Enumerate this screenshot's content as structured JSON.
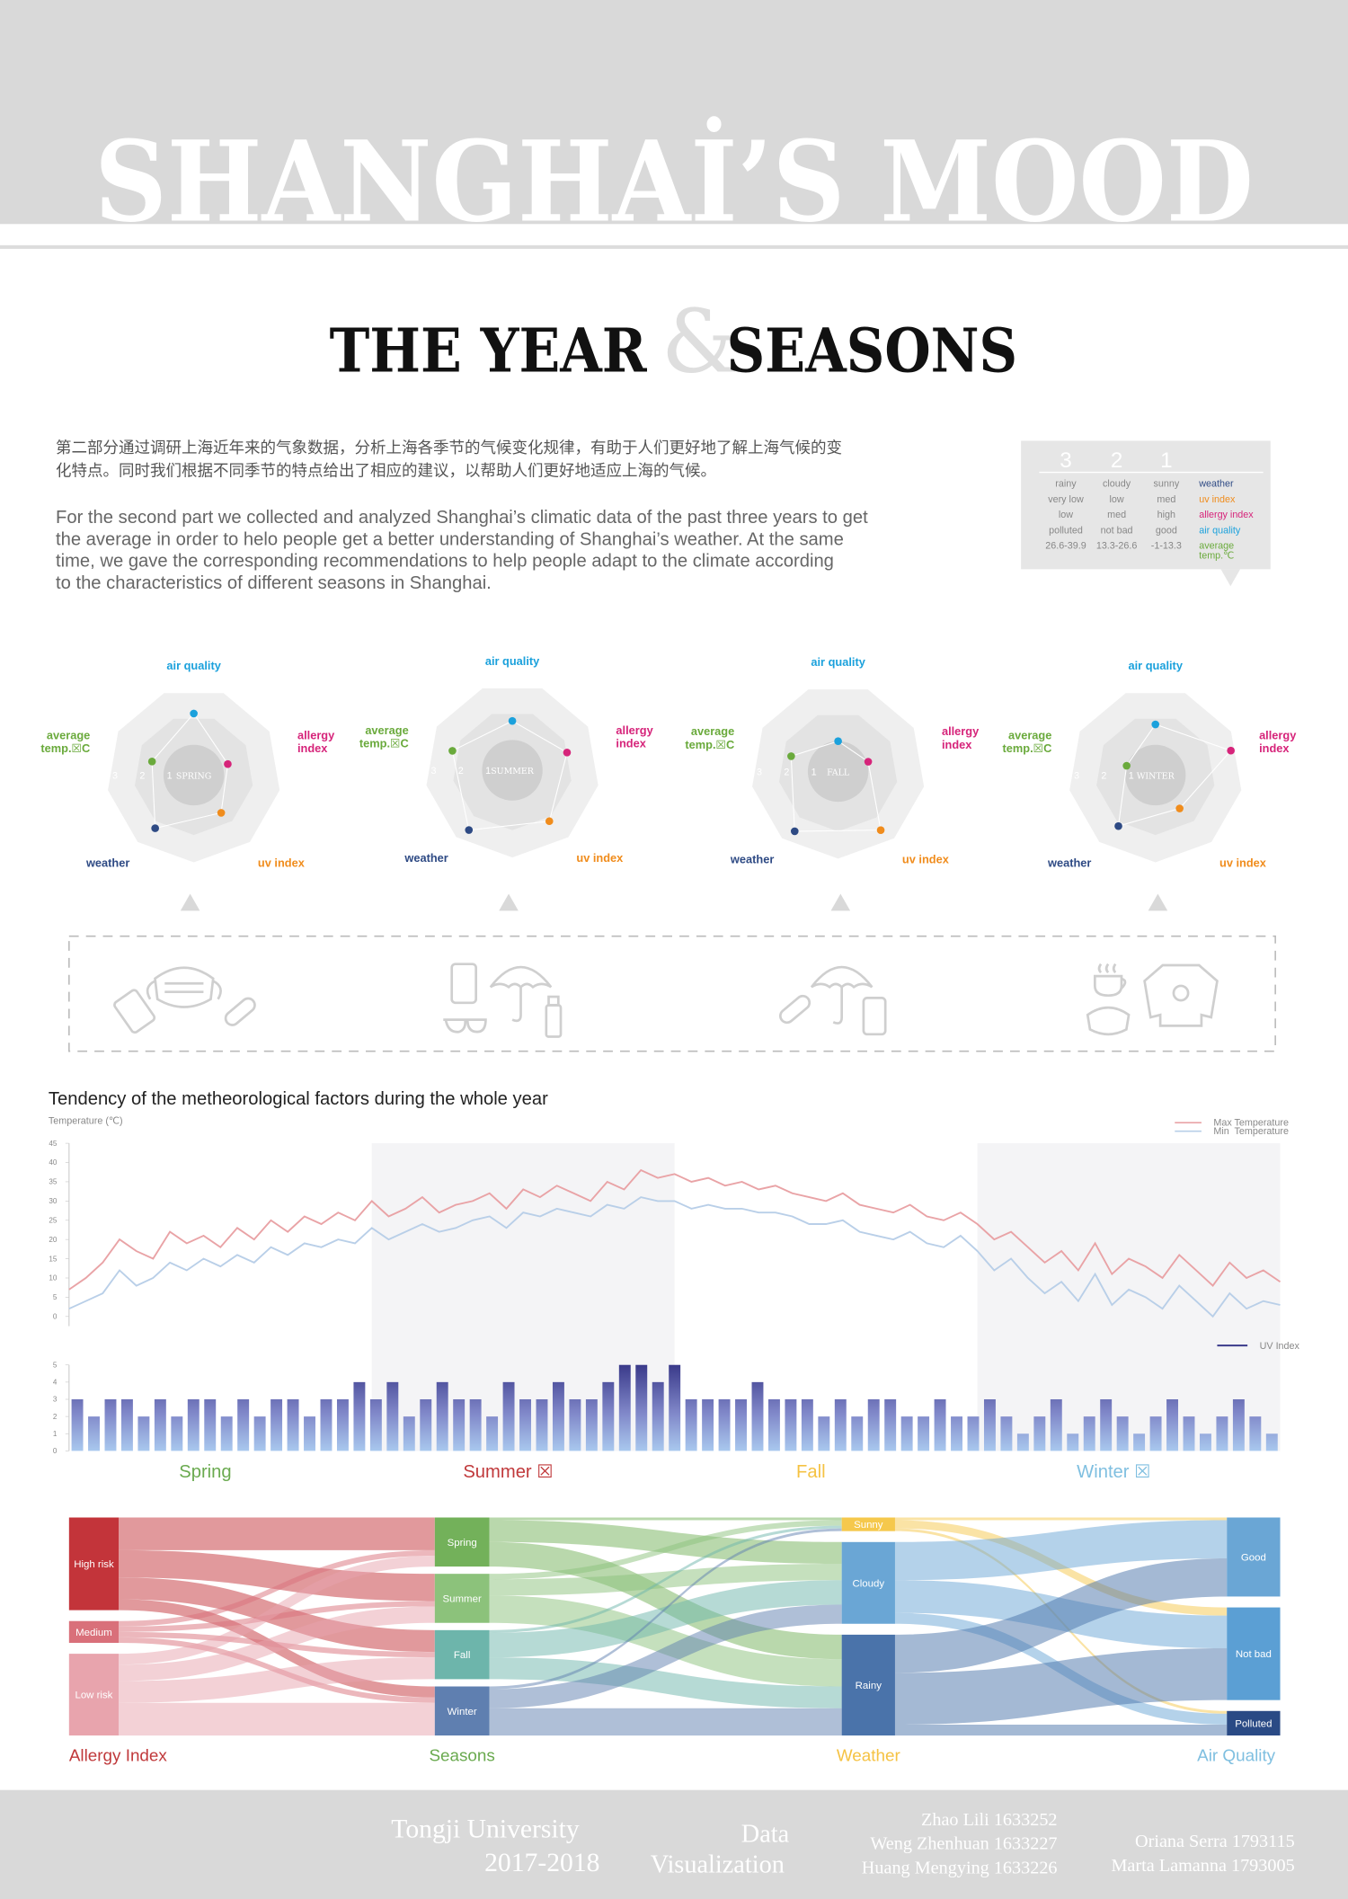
{
  "header": {
    "title": "SHANGHAİ’S MOOD",
    "subtitle_left": "THE YEAR",
    "ampersand": "&",
    "subtitle_right": "SEASONS"
  },
  "intro": {
    "chinese": [
      "第二部分通过调研上海近年来的气象数据，分析上海各季节的气候变化规律，有助于人们更好地了解上海气候的变",
      "化特点。同时我们根据不同季节的特点给出了相应的建议，以帮助人们更好地适应上海的气候。"
    ],
    "english": [
      "For the second part we collected and analyzed Shanghai’s climatic data of the past three years to get",
      "the average in order to helo people get a better understanding of Shanghai’s weather. At the same",
      "time, we gave the corresponding recommendations to help people adapt to the climate according",
      "to the characteristics of different seasons in Shanghai."
    ]
  },
  "legend_table": {
    "scores": [
      3,
      2,
      1
    ],
    "rows": [
      [
        "rainy",
        "cloudy",
        "sunny"
      ],
      [
        "very low",
        "low",
        "med"
      ],
      [
        "low",
        "med",
        "high"
      ],
      [
        "polluted",
        "not bad",
        "good"
      ],
      [
        "26.6-39.9",
        "13.3-26.6",
        "-1-13.3"
      ]
    ],
    "factors": [
      [
        "weather"
      ],
      [
        "uv index"
      ],
      [
        "allergy index"
      ],
      [
        "air quality"
      ],
      [
        "average",
        "temp.℃"
      ]
    ],
    "factor_colors": [
      "#2e4a84",
      "#f08c1c",
      "#d6247a",
      "#1ba1dc",
      "#6aaa3c"
    ]
  },
  "chart_data": [
    {
      "type": "radar",
      "title": "SPRING",
      "axes": [
        [
          "air quality"
        ],
        [
          "allergy",
          "index"
        ],
        [
          "uv index"
        ],
        [
          "weather"
        ],
        [
          "average",
          "temp.☒C"
        ]
      ],
      "colors": [
        "#1ba1dc",
        "#d6247a",
        "#f08c1c",
        "#2e4a84",
        "#6aaa3c"
      ],
      "values": [
        2.15,
        1.2,
        1.6,
        2.3,
        1.5
      ],
      "rlim": [
        1,
        3
      ],
      "rticks": [
        1,
        2,
        3
      ]
    },
    {
      "type": "radar",
      "title": "SUMMER",
      "axes": [
        [
          "air quality"
        ],
        [
          "allergy",
          "index"
        ],
        [
          "uv index"
        ],
        [
          "weather"
        ],
        [
          "average",
          "temp.☒C"
        ]
      ],
      "colors": [
        "#1ba1dc",
        "#d6247a",
        "#f08c1c",
        "#2e4a84",
        "#6aaa3c"
      ],
      "values": [
        1.7,
        2.0,
        2.2,
        2.6,
        2.2
      ],
      "rlim": [
        1,
        3
      ],
      "rticks": [
        1,
        2,
        3
      ]
    },
    {
      "type": "radar",
      "title": "FALL",
      "axes": [
        [
          "air quality"
        ],
        [
          "allergy",
          "index"
        ],
        [
          "uv index"
        ],
        [
          "weather"
        ],
        [
          "average",
          "temp.☒C"
        ]
      ],
      "colors": [
        "#1ba1dc",
        "#d6247a",
        "#f08c1c",
        "#2e4a84",
        "#6aaa3c"
      ],
      "values": [
        1.0,
        1.05,
        2.55,
        2.6,
        1.7
      ],
      "rlim": [
        1,
        3
      ],
      "rticks": [
        1,
        2,
        3
      ]
    },
    {
      "type": "radar",
      "title": "WINTER",
      "axes": [
        [
          "air quality"
        ],
        [
          "allergy",
          "index"
        ],
        [
          "uv index"
        ],
        [
          "weather"
        ],
        [
          "average",
          "temp.☒C"
        ]
      ],
      "colors": [
        "#1ba1dc",
        "#d6247a",
        "#f08c1c",
        "#2e4a84",
        "#6aaa3c"
      ],
      "values": [
        1.75,
        2.8,
        1.4,
        2.2,
        1.0
      ],
      "rlim": [
        1,
        3
      ],
      "rticks": [
        1,
        2,
        3
      ]
    },
    {
      "type": "line",
      "title": "Tendency of the metheorological factors during the whole year",
      "y_label": "Temperature (℃)",
      "ylim": [
        0,
        45
      ],
      "yticks": [
        0,
        5,
        10,
        15,
        20,
        25,
        30,
        35,
        40,
        45
      ],
      "season_labels": [
        "Spring",
        "Summer ☒",
        "Fall",
        "Winter ☒"
      ],
      "season_colors": [
        "#6aaa4f",
        "#c0393b",
        "#f5c243",
        "#7fbfe0"
      ],
      "season_shaded": [
        false,
        true,
        false,
        true
      ],
      "series": [
        {
          "name": "Max Temperature",
          "color": "#e9a3a6",
          "values": [
            7,
            10,
            14,
            20,
            17,
            15,
            22,
            19,
            21,
            18,
            23,
            20,
            25,
            22,
            26,
            24,
            27,
            25,
            30,
            26,
            28,
            31,
            27,
            29,
            30,
            32,
            28,
            33,
            31,
            34,
            32,
            30,
            35,
            33,
            38,
            36,
            37,
            35,
            36,
            34,
            35,
            33,
            34,
            32,
            31,
            30,
            32,
            29,
            28,
            27,
            29,
            26,
            25,
            27,
            24,
            20,
            22,
            18,
            14,
            17,
            12,
            19,
            11,
            15,
            13,
            10,
            16,
            12,
            8,
            14,
            10,
            12,
            9
          ]
        },
        {
          "name": "Min  Temperature",
          "color": "#b9cfe8",
          "values": [
            2,
            4,
            6,
            12,
            8,
            10,
            14,
            12,
            15,
            13,
            16,
            14,
            18,
            16,
            19,
            18,
            20,
            19,
            23,
            20,
            22,
            24,
            22,
            23,
            25,
            26,
            23,
            27,
            26,
            28,
            27,
            26,
            29,
            28,
            31,
            30,
            30,
            28,
            29,
            28,
            28,
            27,
            27,
            26,
            24,
            24,
            25,
            22,
            21,
            20,
            22,
            19,
            18,
            21,
            17,
            12,
            15,
            10,
            6,
            9,
            4,
            11,
            3,
            7,
            5,
            2,
            8,
            4,
            0,
            6,
            2,
            4,
            3
          ]
        }
      ]
    },
    {
      "type": "bar",
      "ylim": [
        0,
        5
      ],
      "yticks": [
        0,
        1,
        2,
        3,
        4,
        5
      ],
      "series": [
        {
          "name": "UV Index",
          "color": "#3a3a8a",
          "values": [
            3,
            2,
            3,
            3,
            2,
            3,
            2,
            3,
            3,
            2,
            3,
            2,
            3,
            3,
            2,
            3,
            3,
            4,
            3,
            4,
            2,
            3,
            4,
            3,
            3,
            2,
            4,
            3,
            3,
            4,
            3,
            3,
            4,
            5,
            5,
            4,
            5,
            3,
            3,
            3,
            3,
            4,
            3,
            3,
            3,
            2,
            3,
            2,
            3,
            3,
            2,
            2,
            3,
            2,
            2,
            3,
            2,
            1,
            2,
            3,
            1,
            2,
            3,
            2,
            1,
            2,
            3,
            2,
            1,
            2,
            3,
            2,
            1
          ]
        }
      ]
    },
    {
      "type": "sankey",
      "columns": [
        {
          "label": "Allergy Index",
          "color": "#c0393b",
          "nodes": [
            {
              "name": "High risk",
              "color": "#c3343a"
            },
            {
              "name": "Medium",
              "color": "#d9707a"
            },
            {
              "name": "Low risk",
              "color": "#e8a4ad"
            }
          ]
        },
        {
          "label": "Seasons",
          "color": "#6aaa4f",
          "nodes": [
            {
              "name": "Spring",
              "color": "#73b15a"
            },
            {
              "name": "Summer",
              "color": "#8cc27b"
            },
            {
              "name": "Fall",
              "color": "#6db5ab"
            },
            {
              "name": "Winter",
              "color": "#5f7fb0"
            }
          ]
        },
        {
          "label": "Weather",
          "color": "#f5c243",
          "nodes": [
            {
              "name": "Sunny",
              "color": "#f5c84c"
            },
            {
              "name": "Cloudy",
              "color": "#6aa6d5"
            },
            {
              "name": "Rainy",
              "color": "#4a73aa"
            }
          ]
        },
        {
          "label": "Air Quality",
          "color": "#7fbfe0",
          "nodes": [
            {
              "name": "Good",
              "color": "#6aa6d5"
            },
            {
              "name": "Not bad",
              "color": "#5b9fd4"
            },
            {
              "name": "Polluted",
              "color": "#2a4a85"
            }
          ]
        }
      ],
      "links": [
        {
          "source": "High risk",
          "target": "Spring",
          "value": 60
        },
        {
          "source": "High risk",
          "target": "Summer",
          "value": 50
        },
        {
          "source": "High risk",
          "target": "Fall",
          "value": 40
        },
        {
          "source": "High risk",
          "target": "Winter",
          "value": 20
        },
        {
          "source": "Medium",
          "target": "Spring",
          "value": 10
        },
        {
          "source": "Medium",
          "target": "Summer",
          "value": 10
        },
        {
          "source": "Medium",
          "target": "Fall",
          "value": 10
        },
        {
          "source": "Medium",
          "target": "Winter",
          "value": 10
        },
        {
          "source": "Low risk",
          "target": "Spring",
          "value": 20
        },
        {
          "source": "Low risk",
          "target": "Summer",
          "value": 30
        },
        {
          "source": "Low risk",
          "target": "Fall",
          "value": 40
        },
        {
          "source": "Low risk",
          "target": "Winter",
          "value": 60
        },
        {
          "source": "Spring",
          "target": "Sunny",
          "value": 5
        },
        {
          "source": "Spring",
          "target": "Cloudy",
          "value": 40
        },
        {
          "source": "Spring",
          "target": "Rainy",
          "value": 45
        },
        {
          "source": "Summer",
          "target": "Sunny",
          "value": 10
        },
        {
          "source": "Summer",
          "target": "Cloudy",
          "value": 30
        },
        {
          "source": "Summer",
          "target": "Rainy",
          "value": 50
        },
        {
          "source": "Fall",
          "target": "Sunny",
          "value": 5
        },
        {
          "source": "Fall",
          "target": "Cloudy",
          "value": 45
        },
        {
          "source": "Fall",
          "target": "Rainy",
          "value": 40
        },
        {
          "source": "Winter",
          "target": "Sunny",
          "value": 5
        },
        {
          "source": "Winter",
          "target": "Cloudy",
          "value": 35
        },
        {
          "source": "Winter",
          "target": "Rainy",
          "value": 50
        },
        {
          "source": "Sunny",
          "target": "Good",
          "value": 5
        },
        {
          "source": "Sunny",
          "target": "Not bad",
          "value": 15
        },
        {
          "source": "Sunny",
          "target": "Polluted",
          "value": 5
        },
        {
          "source": "Cloudy",
          "target": "Good",
          "value": 70
        },
        {
          "source": "Cloudy",
          "target": "Not bad",
          "value": 60
        },
        {
          "source": "Cloudy",
          "target": "Polluted",
          "value": 20
        },
        {
          "source": "Rainy",
          "target": "Good",
          "value": 70
        },
        {
          "source": "Rainy",
          "target": "Not bad",
          "value": 95
        },
        {
          "source": "Rainy",
          "target": "Polluted",
          "value": 20
        }
      ]
    }
  ],
  "footer": {
    "university": "Tongji University",
    "years": "2017-2018",
    "course": [
      "Data",
      "Visualization"
    ],
    "authors_left": [
      "Zhao Lili  1633252",
      "Weng Zhenhuan  1633227",
      "Huang Mengying  1633226"
    ],
    "authors_right": [
      "Oriana Serra  1793115",
      "Marta Lamanna  1793005"
    ]
  }
}
